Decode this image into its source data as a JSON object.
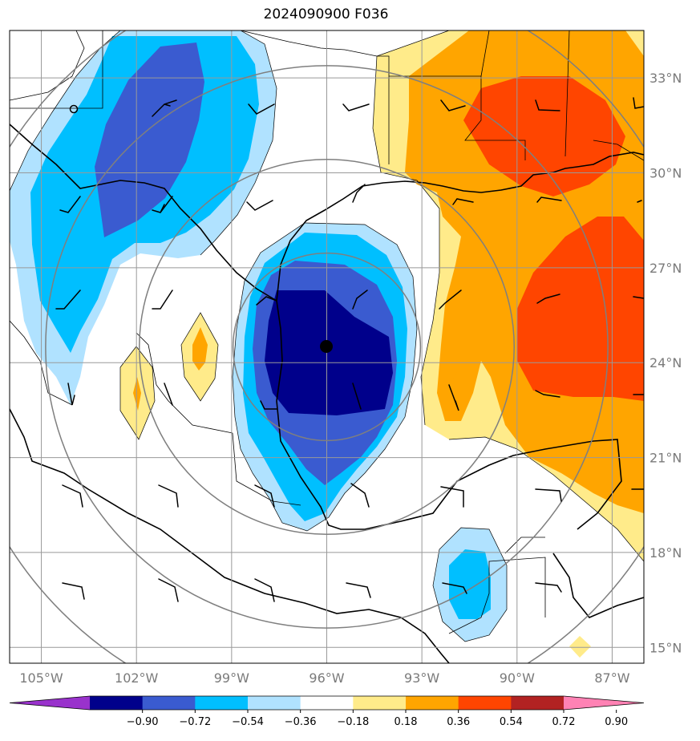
{
  "title": "2024090900 F036",
  "map": {
    "lon_range": [
      -106.0,
      -86.0
    ],
    "lat_range": [
      14.5,
      34.5
    ],
    "lon_ticks": [
      -105,
      -102,
      -99,
      -96,
      -93,
      -90,
      -87
    ],
    "lat_ticks": [
      15,
      18,
      21,
      24,
      27,
      30,
      33
    ],
    "lon_tick_labels": [
      "105°W",
      "102°W",
      "99°W",
      "96°W",
      "93°W",
      "90°W",
      "87°W"
    ],
    "lat_tick_labels": [
      "15°N",
      "18°N",
      "21°N",
      "24°N",
      "27°N",
      "30°N",
      "33°N"
    ],
    "grid": true,
    "center": {
      "lon": -96.0,
      "lat": 24.5
    },
    "range_rings_deg": [
      3,
      6,
      9,
      12
    ]
  },
  "colorbar": {
    "ticks": [
      "−0.90",
      "−0.72",
      "−0.54",
      "−0.36",
      "−0.18",
      "0.18",
      "0.36",
      "0.54",
      "0.72",
      "0.90"
    ],
    "colors": [
      "#9932cc",
      "#00008b",
      "#3a5bd0",
      "#00bfff",
      "#b0e2ff",
      "#ffffff",
      "#ffeb8a",
      "#ffa500",
      "#ff4500",
      "#b22222",
      "#ff82b4"
    ],
    "extend": "both"
  },
  "fill_colors": {
    "neg1": "#b0e2ff",
    "neg2": "#00bfff",
    "neg3": "#3a5bd0",
    "neg4": "#00008b",
    "pos1": "#ffeb8a",
    "pos2": "#ffa500",
    "pos3": "#ff4500"
  }
}
